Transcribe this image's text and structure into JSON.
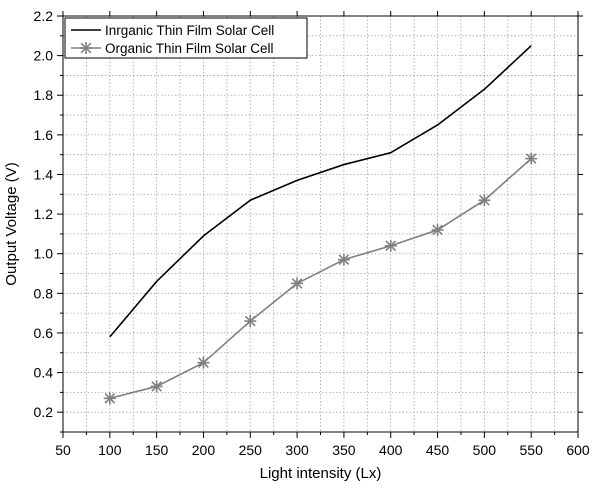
{
  "chart_data": {
    "type": "line",
    "xlabel": "Light intensity (Lx)",
    "ylabel": "Output Voltage (V)",
    "xlim": [
      50,
      600
    ],
    "ylim": [
      0.1,
      2.2
    ],
    "x_ticks": [
      50,
      100,
      150,
      200,
      250,
      300,
      350,
      400,
      450,
      500,
      550,
      600
    ],
    "y_ticks": [
      0.2,
      0.4,
      0.6,
      0.8,
      1.0,
      1.2,
      1.4,
      1.6,
      1.8,
      2.0,
      2.2
    ],
    "x_tick_labels": [
      "50",
      "100",
      "150",
      "200",
      "250",
      "300",
      "350",
      "400",
      "450",
      "500",
      "550",
      "600"
    ],
    "y_tick_labels": [
      "0.2",
      "0.4",
      "0.6",
      "0.8",
      "1.0",
      "1.2",
      "1.4",
      "1.6",
      "1.8",
      "2.0",
      "2.2"
    ],
    "grid": true,
    "legend_position": "top-left",
    "x": [
      100,
      150,
      200,
      250,
      300,
      350,
      400,
      450,
      500,
      550
    ],
    "series": [
      {
        "name": "Inrganic Thin Film Solar Cell",
        "values": [
          0.58,
          0.86,
          1.09,
          1.27,
          1.37,
          1.45,
          1.51,
          1.65,
          1.83,
          2.05
        ],
        "color": "#000000",
        "marker": "none"
      },
      {
        "name": "Organic Thin Film Solar Cell",
        "values": [
          0.27,
          0.33,
          0.45,
          0.66,
          0.85,
          0.97,
          1.04,
          1.12,
          1.27,
          1.48
        ],
        "color": "#808080",
        "marker": "asterisk"
      }
    ]
  }
}
